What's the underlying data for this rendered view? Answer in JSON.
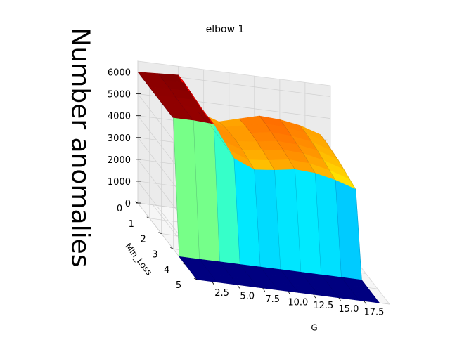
{
  "chart_data": {
    "type": "surface",
    "title": "elbow 1",
    "zlabel": "Number anomalies",
    "xlabel": "G",
    "ylabel": "Min_Loss",
    "colormap": "jet",
    "grid": true,
    "g_ticks": [
      "2.5",
      "5.0",
      "7.5",
      "10.0",
      "12.5",
      "15.0",
      "17.5"
    ],
    "min_loss_ticks": [
      "0",
      "1",
      "2",
      "3",
      "4",
      "5"
    ],
    "z_ticks": [
      "0",
      "1000",
      "2000",
      "3000",
      "4000",
      "5000",
      "6000"
    ],
    "glim": [
      1,
      20
    ],
    "min_loss_lim": [
      0,
      5
    ],
    "zlim": [
      0,
      6500
    ],
    "g": [
      1,
      3,
      5,
      7,
      9,
      11,
      13,
      15,
      17,
      19
    ],
    "min_loss": [
      0.0,
      0.5,
      1.0,
      1.5,
      2.0,
      2.5,
      3.0,
      3.5,
      4.0,
      4.5,
      5.0
    ],
    "z": [
      [
        6000,
        6000,
        6000,
        6000,
        6000,
        6000,
        6000,
        0,
        0,
        0,
        0
      ],
      [
        6050,
        6050,
        6050,
        6000,
        6000,
        6000,
        6000,
        0,
        0,
        0,
        0
      ],
      [
        6100,
        6100,
        6050,
        6000,
        5950,
        5950,
        5950,
        0,
        0,
        0,
        0
      ],
      [
        4500,
        4550,
        4600,
        4600,
        4600,
        4550,
        4500,
        0,
        0,
        0,
        0
      ],
      [
        4200,
        4300,
        4350,
        4350,
        4300,
        4200,
        4100,
        0,
        0,
        0,
        0
      ],
      [
        4450,
        4500,
        4500,
        4450,
        4400,
        4300,
        4200,
        0,
        0,
        0,
        0
      ],
      [
        4700,
        4700,
        4650,
        4600,
        4550,
        4450,
        4350,
        0,
        0,
        0,
        0
      ],
      [
        4650,
        4650,
        4600,
        4550,
        4500,
        4400,
        4300,
        0,
        0,
        0,
        0
      ],
      [
        4500,
        4500,
        4450,
        4400,
        4300,
        4200,
        4100,
        0,
        0,
        0,
        0
      ],
      [
        4200,
        4200,
        4150,
        4100,
        4000,
        3900,
        3800,
        0,
        0,
        0,
        0
      ]
    ]
  }
}
